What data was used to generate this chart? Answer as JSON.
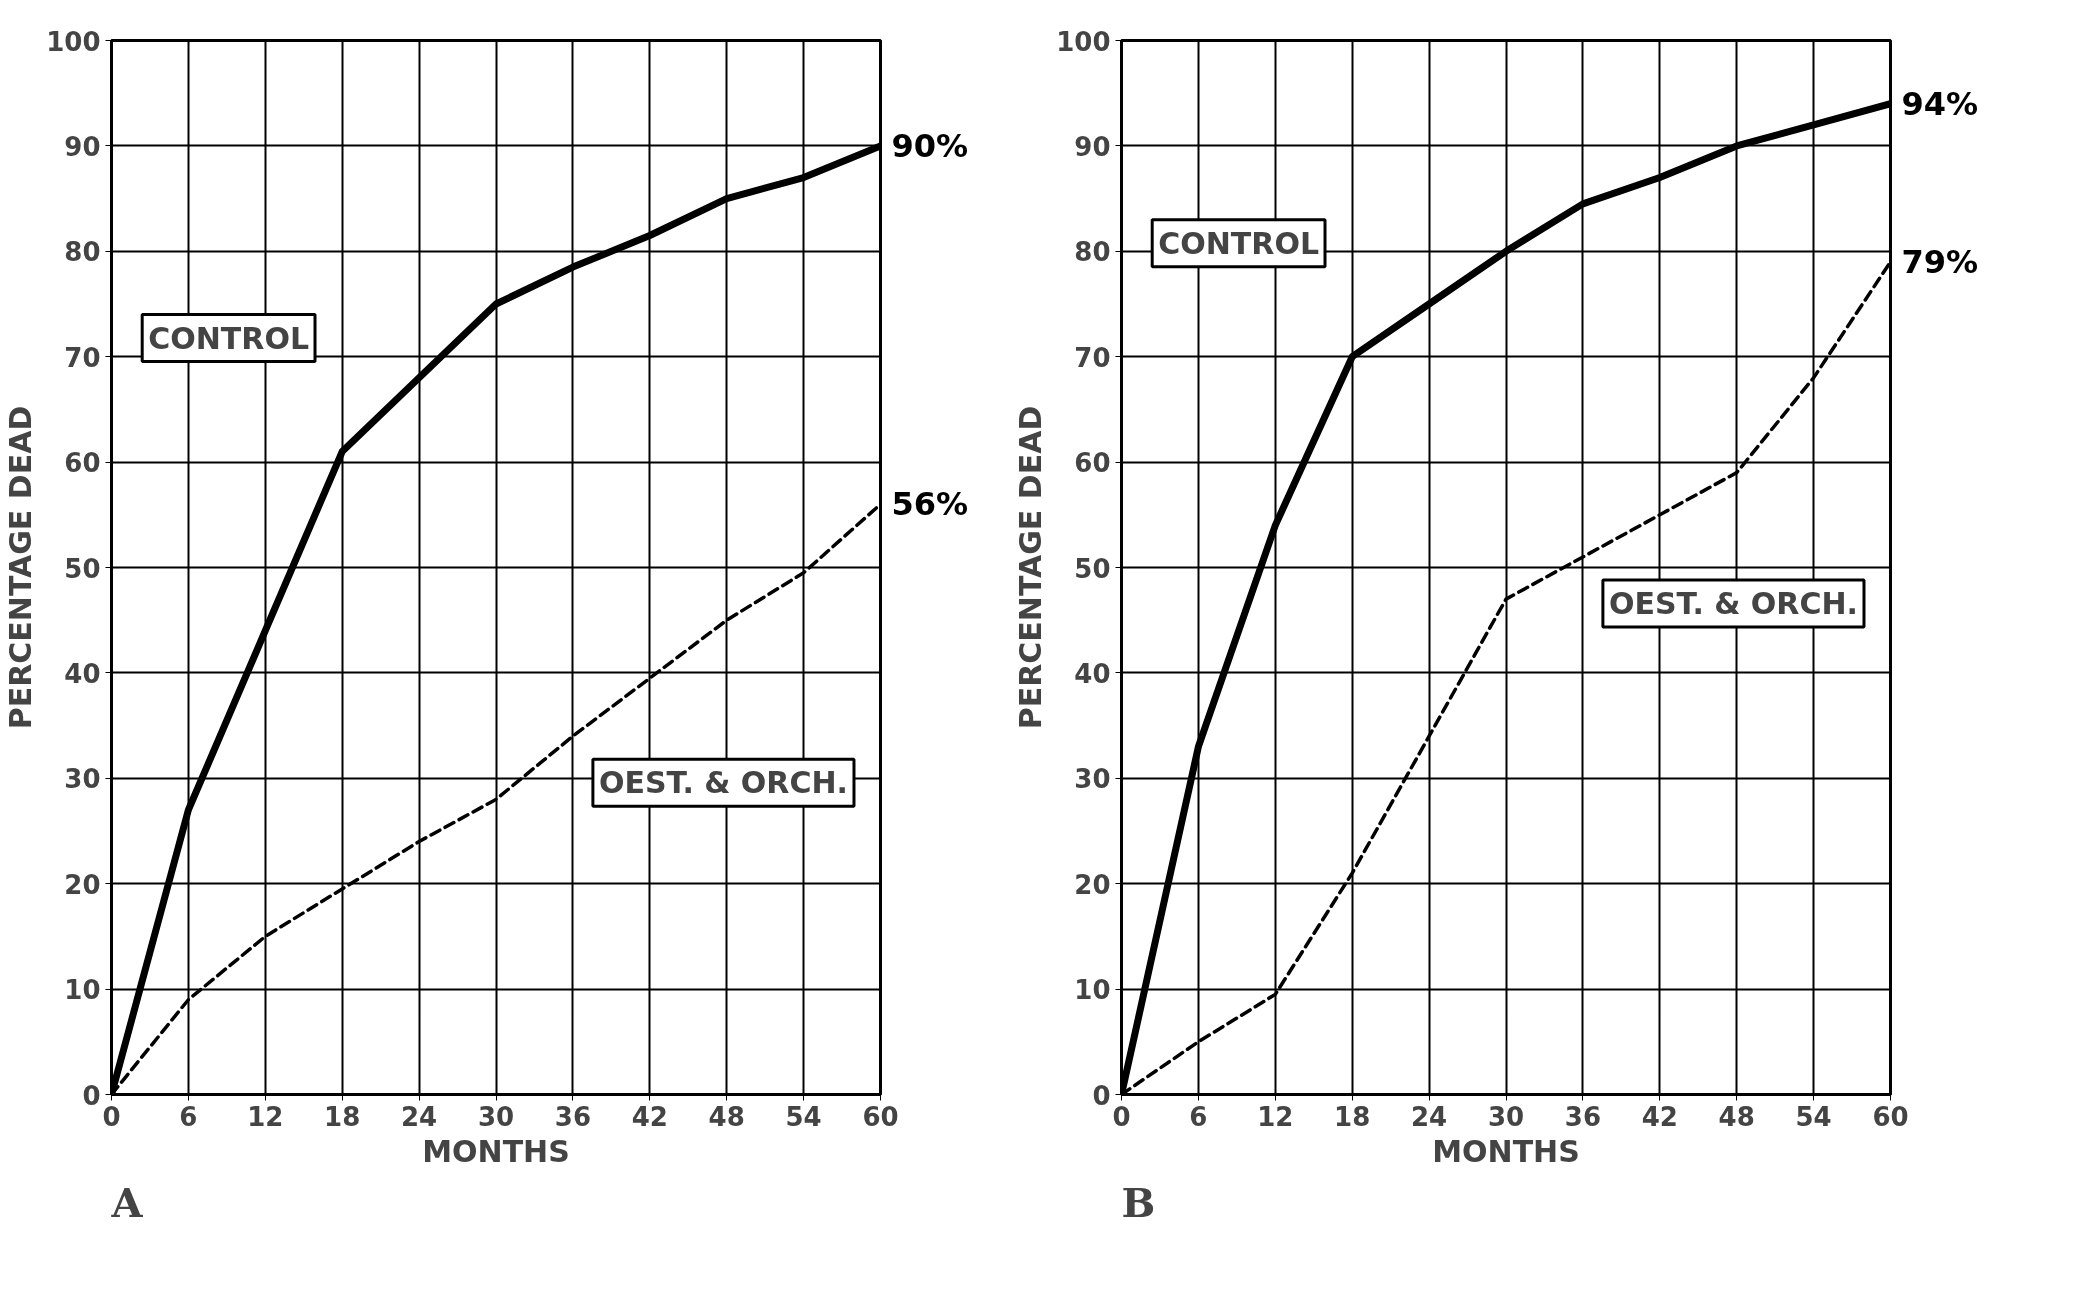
{
  "chart_data": [
    {
      "type": "line",
      "annotations": [
        "A"
      ],
      "xlabel": "MONTHS",
      "ylabel": "PERCENTAGE DEAD",
      "x": [
        0,
        6,
        12,
        18,
        24,
        30,
        36,
        42,
        48,
        54,
        60
      ],
      "xlim": [
        0,
        60
      ],
      "xticks": [
        0,
        6,
        12,
        18,
        24,
        30,
        36,
        42,
        48,
        54,
        60
      ],
      "ylim": [
        0,
        100
      ],
      "yticks": [
        0,
        10,
        20,
        30,
        40,
        50,
        60,
        70,
        80,
        90,
        100
      ],
      "grid": true,
      "marker": "none",
      "series": [
        {
          "name": "CONTROL",
          "color": "#000000",
          "line_style": "solid",
          "values": [
            0,
            27,
            44,
            61,
            68,
            75,
            78.5,
            81.5,
            85,
            87,
            90
          ],
          "value_labels": [
            null,
            null,
            null,
            null,
            null,
            null,
            null,
            null,
            null,
            null,
            "90%"
          ]
        },
        {
          "name": "OEST. & ORCH.",
          "color": "#000000",
          "line_style": "dashed",
          "values": [
            0,
            9,
            15,
            19.5,
            24,
            28,
            34,
            39.5,
            45,
            49.5,
            56
          ],
          "value_labels": [
            null,
            null,
            null,
            null,
            null,
            null,
            null,
            null,
            null,
            null,
            "56%"
          ]
        }
      ]
    },
    {
      "type": "line",
      "annotations": [
        "B"
      ],
      "xlabel": "MONTHS",
      "ylabel": "PERCENTAGE DEAD",
      "x": [
        0,
        6,
        12,
        18,
        24,
        30,
        36,
        42,
        48,
        54,
        60
      ],
      "xlim": [
        0,
        60
      ],
      "xticks": [
        0,
        6,
        12,
        18,
        24,
        30,
        36,
        42,
        48,
        54,
        60
      ],
      "ylim": [
        0,
        100
      ],
      "yticks": [
        0,
        10,
        20,
        30,
        40,
        50,
        60,
        70,
        80,
        90,
        100
      ],
      "grid": true,
      "marker": "none",
      "series": [
        {
          "name": "CONTROL",
          "color": "#000000",
          "line_style": "solid",
          "values": [
            0,
            33,
            54,
            70,
            75,
            80,
            84.5,
            87,
            90,
            92,
            94
          ],
          "value_labels": [
            null,
            null,
            null,
            null,
            null,
            null,
            null,
            null,
            null,
            null,
            "94%"
          ]
        },
        {
          "name": "OEST. & ORCH.",
          "color": "#000000",
          "line_style": "dashed",
          "values": [
            0,
            5,
            9.5,
            21,
            34,
            47,
            51,
            55,
            59,
            68,
            79
          ],
          "value_labels": [
            null,
            null,
            null,
            null,
            null,
            null,
            null,
            null,
            null,
            null,
            "79%"
          ]
        }
      ]
    }
  ]
}
